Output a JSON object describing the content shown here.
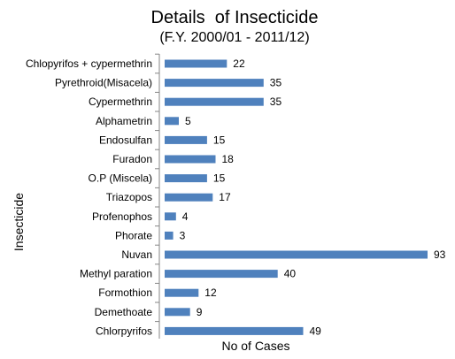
{
  "chart_data": {
    "type": "bar",
    "orientation": "horizontal",
    "title": "Details  of Insecticide",
    "subtitle": "(F.Y. 2000/01 - 2011/12)",
    "xlabel": "No of Cases",
    "ylabel": "Insecticide",
    "xlim": [
      0,
      93
    ],
    "grid": false,
    "legend": "none",
    "bar_color": "#4F81BD",
    "categories": [
      "Chlopyrifos + cypermethrin",
      "Pyrethroid(Misacela)",
      "Cypermethrin",
      "Alphametrin",
      "Endosulfan",
      "Furadon",
      "O.P (Miscela)",
      "Triazopos",
      "Profenophos",
      "Phorate",
      "Nuvan",
      "Methyl paration ",
      "Formothion",
      "Demethoate",
      "Chlorpyrifos"
    ],
    "values": [
      22,
      35,
      35,
      5,
      15,
      18,
      15,
      17,
      4,
      3,
      93,
      40,
      12,
      9,
      49
    ]
  }
}
